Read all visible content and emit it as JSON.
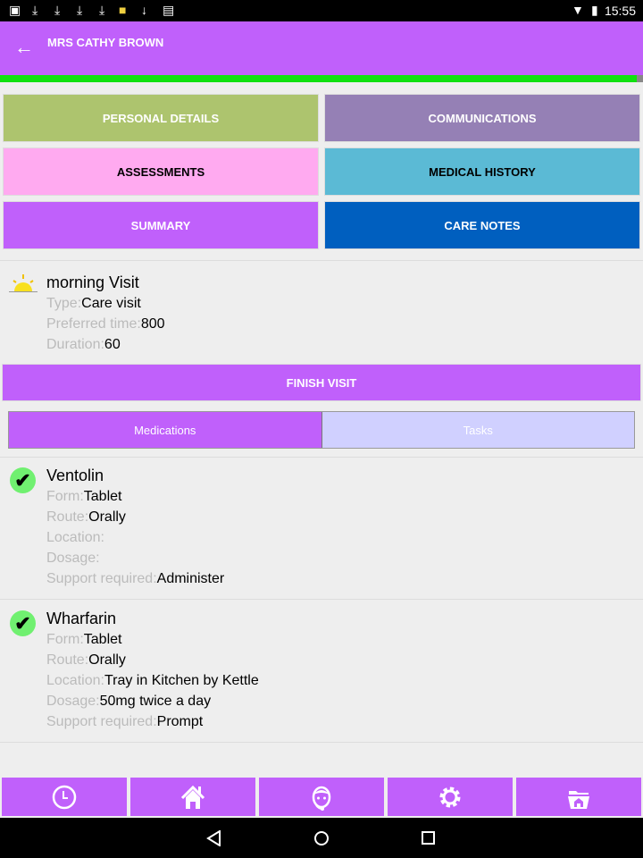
{
  "status_bar": {
    "time": "15:55",
    "icons": [
      "image-icon",
      "download-icon",
      "download-icon",
      "download-icon",
      "download-icon",
      "folder-icon",
      "download-icon",
      "clipboard-icon"
    ]
  },
  "app_bar": {
    "title": "MRS CATHY BROWN"
  },
  "progress": {
    "percent": 99,
    "color": "#10e010"
  },
  "menu_buttons": [
    {
      "label": "PERSONAL DETAILS",
      "color": "#adc46e"
    },
    {
      "label": "COMMUNICATIONS",
      "color": "#9580b5"
    },
    {
      "label": "ASSESSMENTS",
      "color": "#ffaaf0"
    },
    {
      "label": "MEDICAL HISTORY",
      "color": "#5bbad5"
    },
    {
      "label": "SUMMARY",
      "color": "#c060fb"
    },
    {
      "label": "CARE NOTES",
      "color": "#005fbf"
    }
  ],
  "visit": {
    "title": "morning Visit",
    "type_label": "Type:",
    "type": "Care visit",
    "time_label": "Preferred time:",
    "time": "800",
    "duration_label": "Duration:",
    "duration": "60"
  },
  "finish_label": "FINISH VISIT",
  "tabs": [
    {
      "label": "Medications",
      "active": true
    },
    {
      "label": "Tasks",
      "active": false
    }
  ],
  "labels": {
    "form": "Form:",
    "route": "Route:",
    "location": "Location:",
    "dosage": "Dosage:",
    "support": "Support required:"
  },
  "medications": [
    {
      "name": "Ventolin",
      "form": "Tablet",
      "route": "Orally",
      "location": "",
      "dosage": "",
      "support": "Administer",
      "done": true
    },
    {
      "name": "Wharfarin",
      "form": "Tablet",
      "route": "Orally",
      "location": "Tray in Kitchen by Kettle",
      "dosage": "50mg twice a day",
      "support": "Prompt",
      "done": true
    }
  ],
  "bottom_nav": [
    "clock-icon",
    "home-icon",
    "support-agent-icon",
    "gear-icon",
    "folder-home-icon"
  ]
}
